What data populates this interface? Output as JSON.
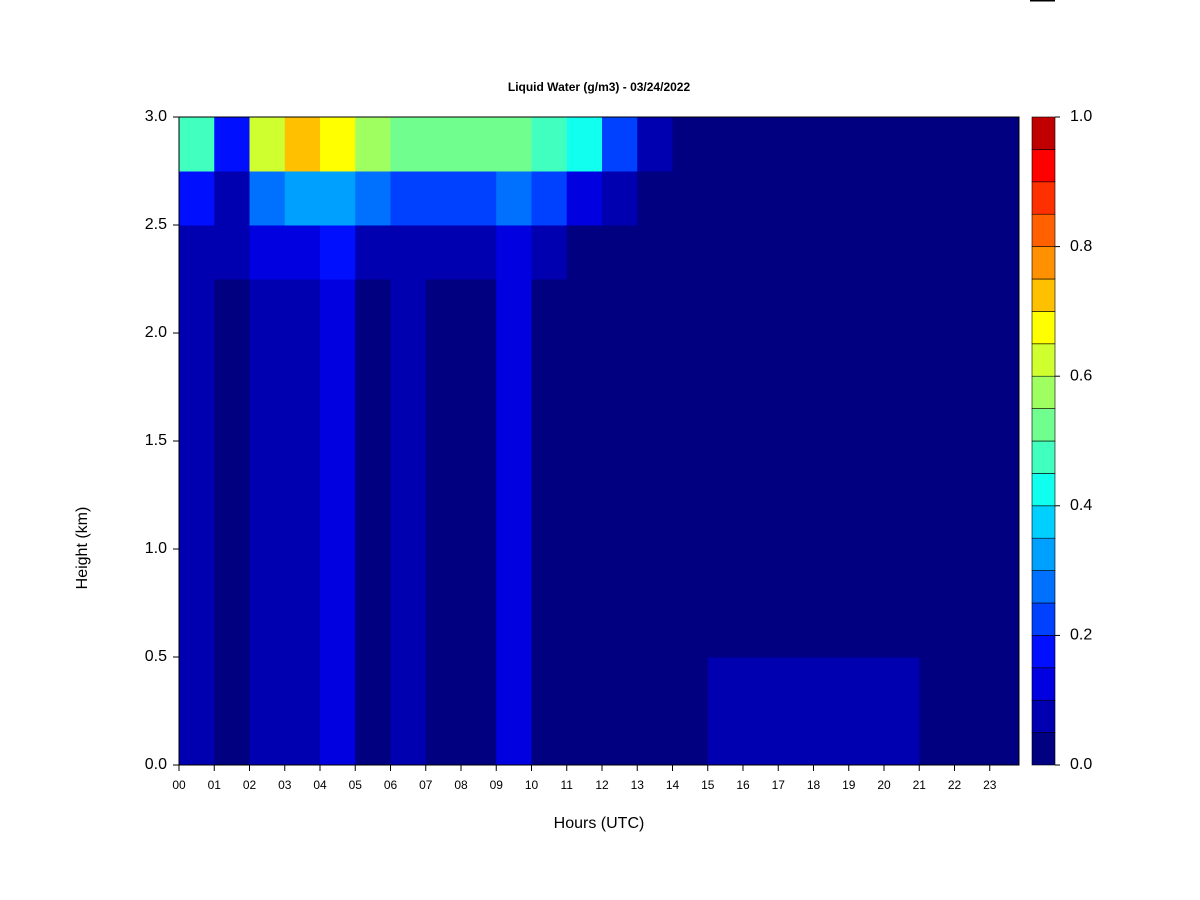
{
  "chart_data": {
    "type": "heatmap",
    "title": "Liquid Water (g/m3) - 03/24/2022",
    "xlabel": "Hours (UTC)",
    "ylabel": "Height (km)",
    "xlim": [
      0,
      23.83
    ],
    "ylim": [
      0,
      3
    ],
    "xticks": [
      {
        "value": 0,
        "label": "00"
      },
      {
        "value": 1,
        "label": "01"
      },
      {
        "value": 2,
        "label": "02"
      },
      {
        "value": 3,
        "label": "03"
      },
      {
        "value": 4,
        "label": "04"
      },
      {
        "value": 5,
        "label": "05"
      },
      {
        "value": 6,
        "label": "06"
      },
      {
        "value": 7,
        "label": "07"
      },
      {
        "value": 8,
        "label": "08"
      },
      {
        "value": 9,
        "label": "09"
      },
      {
        "value": 10,
        "label": "10"
      },
      {
        "value": 11,
        "label": "11"
      },
      {
        "value": 12,
        "label": "12"
      },
      {
        "value": 13,
        "label": "13"
      },
      {
        "value": 14,
        "label": "14"
      },
      {
        "value": 15,
        "label": "15"
      },
      {
        "value": 16,
        "label": "16"
      },
      {
        "value": 17,
        "label": "17"
      },
      {
        "value": 18,
        "label": "18"
      },
      {
        "value": 19,
        "label": "19"
      },
      {
        "value": 20,
        "label": "20"
      },
      {
        "value": 21,
        "label": "21"
      },
      {
        "value": 22,
        "label": "22"
      },
      {
        "value": 23,
        "label": "23"
      }
    ],
    "yticks": [
      {
        "value": 0,
        "label": "0.0"
      },
      {
        "value": 0.5,
        "label": "0.5"
      },
      {
        "value": 1,
        "label": "1.0"
      },
      {
        "value": 1.5,
        "label": "1.5"
      },
      {
        "value": 2,
        "label": "2.0"
      },
      {
        "value": 2.5,
        "label": "2.5"
      },
      {
        "value": 3,
        "label": "3.0"
      }
    ],
    "x": [
      0,
      1,
      2,
      3,
      4,
      5,
      6,
      7,
      8,
      9,
      10,
      11,
      12,
      13,
      14,
      15,
      16,
      17,
      18,
      19,
      20,
      21,
      22,
      23
    ],
    "y": [
      0,
      0.25,
      0.5,
      0.75,
      1,
      1.25,
      1.5,
      1.75,
      2,
      2.25,
      2.5,
      2.75
    ],
    "z": [
      [
        0.06,
        0.03,
        0.06,
        0.06,
        0.1,
        0.03,
        0.06,
        0.03,
        0.03,
        0.1,
        0.03,
        0.02,
        0.02,
        0.02,
        0.04,
        0.08,
        0.08,
        0.08,
        0.08,
        0.08,
        0.08,
        0.04,
        0.04,
        0.04
      ],
      [
        0.06,
        0.03,
        0.06,
        0.06,
        0.1,
        0.03,
        0.06,
        0.03,
        0.03,
        0.1,
        0.03,
        0.02,
        0.02,
        0.02,
        0.02,
        0.07,
        0.07,
        0.07,
        0.07,
        0.07,
        0.07,
        0.03,
        0.03,
        0.03
      ],
      [
        0.06,
        0.03,
        0.06,
        0.06,
        0.1,
        0.03,
        0.06,
        0.03,
        0.03,
        0.1,
        0.03,
        0.02,
        0.02,
        0.02,
        0.02,
        0.04,
        0.04,
        0.04,
        0.04,
        0.04,
        0.04,
        0.02,
        0.02,
        0.02
      ],
      [
        0.06,
        0.03,
        0.06,
        0.06,
        0.1,
        0.03,
        0.06,
        0.03,
        0.03,
        0.1,
        0.03,
        0.02,
        0.02,
        0.02,
        0.02,
        0.02,
        0.02,
        0.02,
        0.02,
        0.02,
        0.02,
        0.02,
        0.02,
        0.02
      ],
      [
        0.06,
        0.03,
        0.06,
        0.06,
        0.1,
        0.03,
        0.06,
        0.03,
        0.03,
        0.1,
        0.03,
        0.02,
        0.02,
        0.02,
        0.02,
        0.02,
        0.02,
        0.02,
        0.02,
        0.02,
        0.02,
        0.02,
        0.02,
        0.02
      ],
      [
        0.06,
        0.03,
        0.06,
        0.06,
        0.1,
        0.03,
        0.06,
        0.03,
        0.03,
        0.1,
        0.03,
        0.02,
        0.02,
        0.02,
        0.02,
        0.02,
        0.02,
        0.02,
        0.02,
        0.02,
        0.02,
        0.02,
        0.02,
        0.02
      ],
      [
        0.06,
        0.03,
        0.06,
        0.06,
        0.1,
        0.03,
        0.06,
        0.03,
        0.03,
        0.1,
        0.03,
        0.02,
        0.02,
        0.02,
        0.02,
        0.02,
        0.02,
        0.02,
        0.02,
        0.02,
        0.02,
        0.02,
        0.02,
        0.02
      ],
      [
        0.06,
        0.03,
        0.06,
        0.06,
        0.1,
        0.03,
        0.06,
        0.03,
        0.03,
        0.1,
        0.03,
        0.02,
        0.02,
        0.02,
        0.02,
        0.02,
        0.02,
        0.02,
        0.02,
        0.02,
        0.02,
        0.02,
        0.02,
        0.02
      ],
      [
        0.06,
        0.03,
        0.06,
        0.06,
        0.1,
        0.03,
        0.06,
        0.03,
        0.03,
        0.1,
        0.03,
        0.02,
        0.02,
        0.02,
        0.02,
        0.02,
        0.02,
        0.02,
        0.02,
        0.02,
        0.02,
        0.02,
        0.02,
        0.02
      ],
      [
        0.06,
        0.06,
        0.1,
        0.1,
        0.15,
        0.08,
        0.08,
        0.07,
        0.06,
        0.1,
        0.06,
        0.04,
        0.02,
        0.02,
        0.02,
        0.02,
        0.02,
        0.02,
        0.02,
        0.02,
        0.02,
        0.02,
        0.02,
        0.02
      ],
      [
        0.15,
        0.08,
        0.25,
        0.3,
        0.3,
        0.25,
        0.22,
        0.2,
        0.2,
        0.25,
        0.2,
        0.12,
        0.06,
        0.03,
        0.02,
        0.02,
        0.02,
        0.02,
        0.02,
        0.02,
        0.02,
        0.02,
        0.02,
        0.02
      ],
      [
        0.45,
        0.15,
        0.6,
        0.72,
        0.65,
        0.55,
        0.52,
        0.5,
        0.52,
        0.52,
        0.48,
        0.42,
        0.22,
        0.08,
        0.02,
        0.02,
        0.02,
        0.02,
        0.02,
        0.02,
        0.02,
        0.02,
        0.02,
        0.02
      ]
    ],
    "levels": [
      0,
      0.05,
      0.1,
      0.15,
      0.2,
      0.25,
      0.3,
      0.35,
      0.4,
      0.45,
      0.5,
      0.55,
      0.6,
      0.65,
      0.7,
      0.75,
      0.8,
      0.85,
      0.9,
      0.95,
      1
    ],
    "colors": [
      "#000080",
      "#0000b0",
      "#0000e0",
      "#0010ff",
      "#0040ff",
      "#0070ff",
      "#00a0ff",
      "#00d0ff",
      "#10ffef",
      "#40ffbf",
      "#70ff8f",
      "#a0ff60",
      "#d0ff30",
      "#ffff00",
      "#ffc000",
      "#ff9000",
      "#ff6000",
      "#ff3000",
      "#ff0000",
      "#c00000",
      "#800000"
    ],
    "cticks": [
      {
        "value": 0,
        "label": "0.0"
      },
      {
        "value": 0.2,
        "label": "0.2"
      },
      {
        "value": 0.4,
        "label": "0.4"
      },
      {
        "value": 0.6,
        "label": "0.6"
      },
      {
        "value": 0.8,
        "label": "0.8"
      },
      {
        "value": 1,
        "label": "1.0"
      }
    ]
  }
}
